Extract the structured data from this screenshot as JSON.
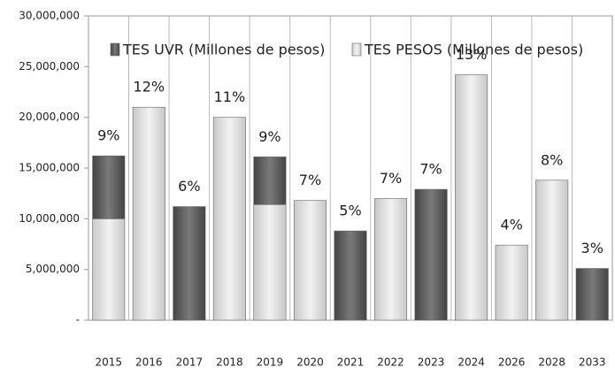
{
  "chart_data": {
    "type": "stacked_bar",
    "categories": [
      "2015",
      "2016",
      "2017",
      "2018",
      "2019",
      "2020",
      "2021",
      "2022",
      "2023",
      "2024",
      "2026",
      "2028",
      "2033"
    ],
    "series": [
      {
        "name": "TES PESOS (Millones de pesos)",
        "color": "#d9d9d9",
        "values": [
          10000000,
          21000000,
          0,
          20000000,
          11400000,
          11800000,
          0,
          12000000,
          0,
          24200000,
          7400000,
          13800000,
          0
        ]
      },
      {
        "name": "TES UVR (Millones de pesos)",
        "color": "#5a5a5a",
        "values": [
          6200000,
          0,
          11200000,
          0,
          4700000,
          0,
          8800000,
          0,
          12900000,
          0,
          0,
          0,
          5100000
        ]
      }
    ],
    "annotations": [
      "9%",
      "12%",
      "6%",
      "11%",
      "9%",
      "7%",
      "5%",
      "7%",
      "7%",
      "13%",
      "4%",
      "8%",
      "3%"
    ],
    "ylim": [
      0,
      30000000
    ],
    "yticks": [
      {
        "value": 0,
        "label": "-"
      },
      {
        "value": 5000000,
        "label": "5,000,000"
      },
      {
        "value": 10000000,
        "label": "10,000,000"
      },
      {
        "value": 15000000,
        "label": "15,000,000"
      },
      {
        "value": 20000000,
        "label": "20,000,000"
      },
      {
        "value": 25000000,
        "label": "25,000,000"
      },
      {
        "value": 30000000,
        "label": "30,000,000"
      }
    ],
    "grid": false
  }
}
